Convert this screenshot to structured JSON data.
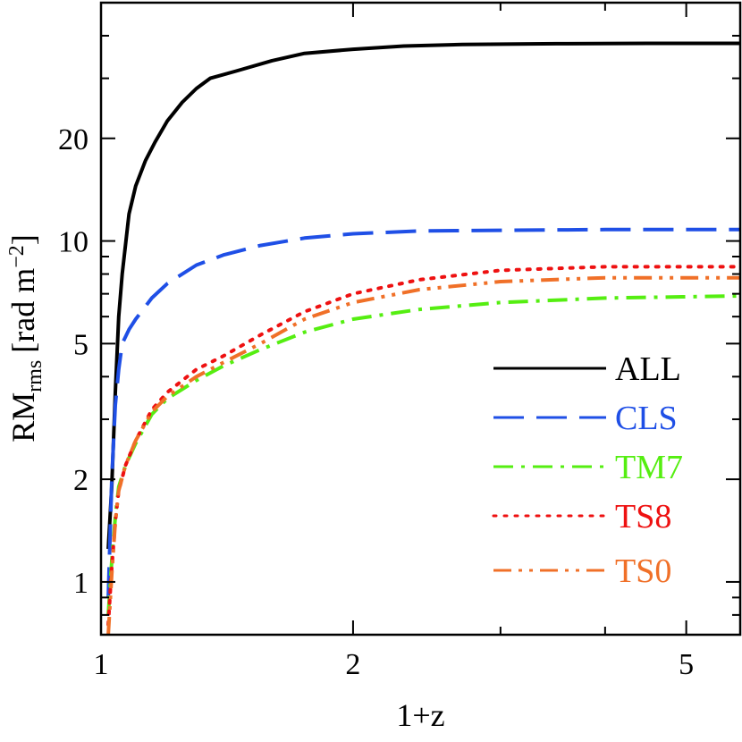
{
  "chart_data": {
    "type": "line",
    "xlabel": "1+z",
    "ylabel": {
      "main": "RM",
      "subscript": "rms",
      "unit_open": "[rad m",
      "unit_superscript": "−2",
      "unit_close": "]"
    },
    "xscale": "log",
    "yscale": "log",
    "xlim": [
      1,
      5.8
    ],
    "ylim": [
      0.7,
      50
    ],
    "xticks": [
      {
        "value": 1,
        "label": "1"
      },
      {
        "value": 2,
        "label": "2"
      },
      {
        "value": 5,
        "label": "5"
      }
    ],
    "yticks": [
      {
        "value": 1,
        "label": "1"
      },
      {
        "value": 2,
        "label": "2"
      },
      {
        "value": 5,
        "label": "5"
      },
      {
        "value": 10,
        "label": "10"
      },
      {
        "value": 20,
        "label": "20"
      }
    ],
    "legend_position": "right",
    "series": [
      {
        "name": "ALL",
        "color": "#000000",
        "dash": "solid",
        "x": [
          1.02,
          1.03,
          1.04,
          1.05,
          1.06,
          1.08,
          1.1,
          1.13,
          1.16,
          1.2,
          1.25,
          1.3,
          1.35,
          1.45,
          1.6,
          1.75,
          2.0,
          2.3,
          2.7,
          3.5,
          4.5,
          5.8
        ],
        "y": [
          1.25,
          1.9,
          3.6,
          6.0,
          8.0,
          12.0,
          14.5,
          17.2,
          19.5,
          22.5,
          25.5,
          28.0,
          30.0,
          31.5,
          33.8,
          35.5,
          36.5,
          37.3,
          37.7,
          37.9,
          38.0,
          38.0
        ]
      },
      {
        "name": "CLS",
        "color": "#1f4fe6",
        "dash": "long",
        "x": [
          1.02,
          1.03,
          1.04,
          1.05,
          1.06,
          1.08,
          1.1,
          1.15,
          1.2,
          1.3,
          1.4,
          1.55,
          1.75,
          2.0,
          2.4,
          3.0,
          4.0,
          5.8
        ],
        "y": [
          0.9,
          2.0,
          3.3,
          4.2,
          5.0,
          5.5,
          5.9,
          6.8,
          7.5,
          8.5,
          9.1,
          9.7,
          10.2,
          10.5,
          10.7,
          10.75,
          10.8,
          10.8
        ]
      },
      {
        "name": "TM7",
        "color": "#55ee11",
        "dash": "dashdot",
        "x": [
          1.02,
          1.03,
          1.04,
          1.05,
          1.07,
          1.1,
          1.15,
          1.2,
          1.3,
          1.4,
          1.55,
          1.75,
          2.0,
          2.4,
          3.0,
          4.0,
          5.8
        ],
        "y": [
          0.8,
          1.15,
          1.55,
          1.9,
          2.2,
          2.55,
          3.1,
          3.45,
          3.9,
          4.3,
          4.8,
          5.4,
          5.9,
          6.3,
          6.6,
          6.8,
          6.9
        ]
      },
      {
        "name": "TS8",
        "color": "#ee1111",
        "dash": "dotted",
        "x": [
          1.02,
          1.03,
          1.04,
          1.05,
          1.07,
          1.1,
          1.15,
          1.2,
          1.3,
          1.4,
          1.55,
          1.75,
          2.0,
          2.4,
          3.0,
          4.0,
          5.8
        ],
        "y": [
          0.75,
          1.1,
          1.5,
          1.85,
          2.2,
          2.6,
          3.2,
          3.6,
          4.2,
          4.6,
          5.3,
          6.2,
          7.0,
          7.7,
          8.2,
          8.4,
          8.4
        ]
      },
      {
        "name": "TS0",
        "color": "#f07028",
        "dash": "dashdotdot",
        "x": [
          1.02,
          1.025,
          1.03,
          1.04,
          1.05,
          1.07,
          1.1,
          1.15,
          1.2,
          1.3,
          1.4,
          1.55,
          1.75,
          2.0,
          2.4,
          3.0,
          4.0,
          5.8
        ],
        "y": [
          0.7,
          0.85,
          1.05,
          1.5,
          1.85,
          2.2,
          2.6,
          3.15,
          3.5,
          4.0,
          4.4,
          5.0,
          5.9,
          6.6,
          7.2,
          7.6,
          7.8,
          7.8
        ]
      }
    ]
  }
}
